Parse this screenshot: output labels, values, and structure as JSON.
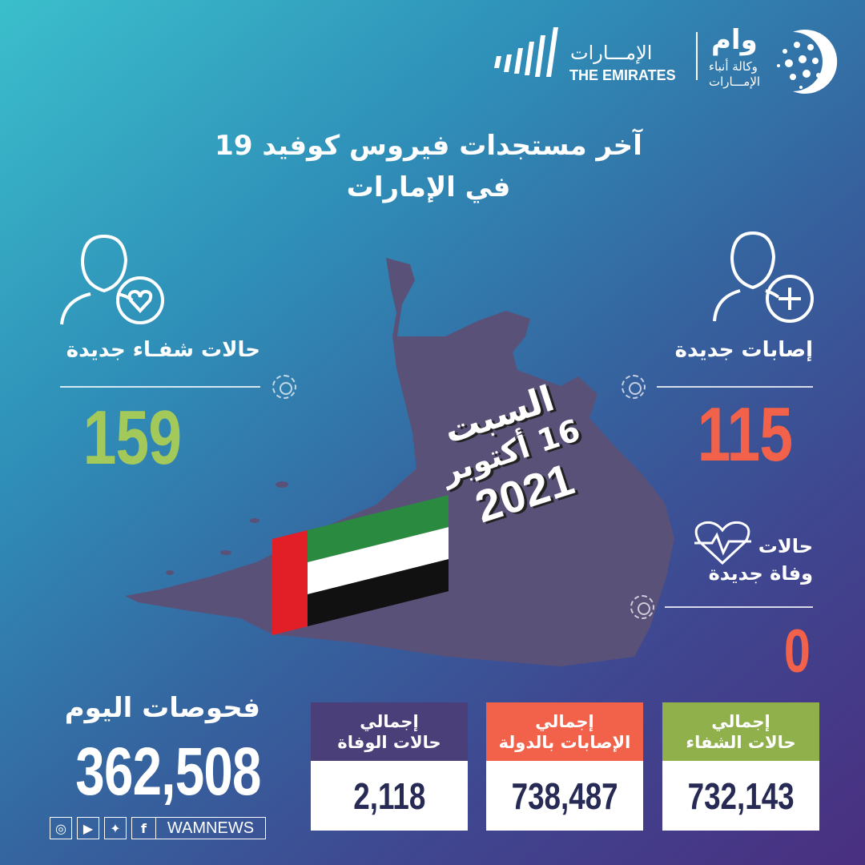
{
  "header": {
    "logo_emirates_ar": "الإمـــارات",
    "logo_emirates_en": "THE EMIRATES",
    "logo_wam": "وام",
    "logo_wam_sub1": "وكالة أنباء",
    "logo_wam_sub2": "الإمـــارات"
  },
  "title": {
    "line1": "آخر مستجدات فيروس كوفيد 19",
    "line2": "في الإمارات"
  },
  "date": {
    "day": "السبت",
    "day_month": "16 أكتوبر",
    "year": "2021"
  },
  "recoveries": {
    "label": "حالات شفـاء جديدة",
    "value": "159",
    "color": "#a3c95a"
  },
  "new_cases": {
    "label": "إصابات جديدة",
    "value": "115",
    "color": "#f2624a"
  },
  "deaths": {
    "label1": "حالات",
    "label2": "وفاة جديدة",
    "value": "0",
    "color": "#f2624a"
  },
  "tests": {
    "label": "فحوصات اليوم",
    "value": "362,508"
  },
  "totals": [
    {
      "line1": "إجمالي",
      "line2": "حالات الوفاة",
      "value": "2,118",
      "color": "#4a3f78"
    },
    {
      "line1": "إجمالي",
      "line2": "الإصابات بالدولة",
      "value": "738,487",
      "color": "#f2624a"
    },
    {
      "line1": "إجمالي",
      "line2": "حالات الشفاء",
      "value": "732,143",
      "color": "#8fb04a"
    }
  ],
  "social": {
    "handle": "WAMNEWS",
    "icons": [
      "instagram-icon",
      "youtube-icon",
      "twitter-icon",
      "facebook-icon"
    ]
  }
}
